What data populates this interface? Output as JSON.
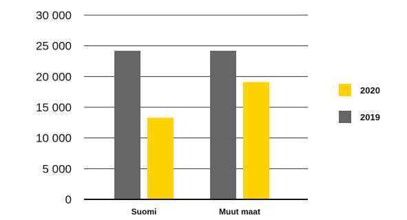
{
  "chart_data": {
    "type": "bar",
    "categories": [
      "Suomi",
      "Muut maat"
    ],
    "series": [
      {
        "name": "2019",
        "color": "#666666",
        "values": [
          24200,
          24200
        ]
      },
      {
        "name": "2020",
        "color": "#FFD200",
        "values": [
          13300,
          19100
        ]
      }
    ],
    "ylim": [
      0,
      30000
    ],
    "yticks": [
      0,
      5000,
      10000,
      15000,
      20000,
      25000,
      30000
    ],
    "ytick_labels": [
      "0",
      "5 000",
      "10 000",
      "15 000",
      "20 000",
      "25 000",
      "30 000"
    ],
    "grid": true,
    "legend": {
      "placement": "right",
      "entries": [
        {
          "label": "2020",
          "color": "#FFD200"
        },
        {
          "label": "2019",
          "color": "#666666"
        }
      ]
    },
    "title": "",
    "xlabel": "",
    "ylabel": ""
  }
}
